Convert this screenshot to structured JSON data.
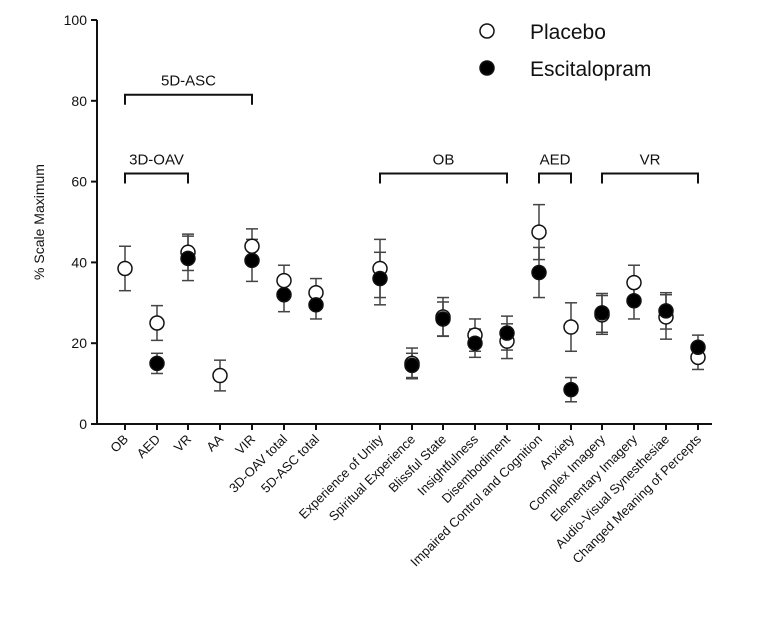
{
  "chart_data": {
    "type": "scatter",
    "title": "",
    "xlabel": "",
    "ylabel": "% Scale Maximum",
    "ylim": [
      0,
      100
    ],
    "yticks": [
      0,
      20,
      40,
      60,
      80,
      100
    ],
    "grid": false,
    "legend_position": "top-right",
    "categories": [
      "OB",
      "AED",
      "VR",
      "AA",
      "VIR",
      "3D-OAV total",
      "5D-ASC total",
      "Experience of Unity",
      "Spiritual Experience",
      "Blissful State",
      "Insightfulness",
      "Disembodiment",
      "Impaired Control and Cognition",
      "Anxiety",
      "Complex Imagery",
      "Elementary Imagery",
      "Audio-Visual Synesthesiae",
      "Changed Meaning of Percepts"
    ],
    "series": [
      {
        "name": "Placebo",
        "marker": "open-circle",
        "color": "#ffffff",
        "values": [
          38.5,
          25,
          42.5,
          12,
          44,
          35.5,
          32.5,
          38.5,
          15,
          26.5,
          22,
          20.5,
          47.5,
          24,
          27,
          35,
          26.5,
          16.5
        ],
        "errors": [
          5.5,
          4.3,
          4.5,
          3.8,
          4.3,
          3.8,
          3.5,
          7.2,
          3.8,
          4.8,
          4,
          4.3,
          6.8,
          6,
          4.8,
          4.3,
          5.5,
          3
        ]
      },
      {
        "name": "Escitalopram",
        "marker": "filled-circle",
        "color": "#000000",
        "values": [
          null,
          15,
          41,
          null,
          40.5,
          32,
          29.5,
          36,
          14.5,
          26,
          20,
          22.5,
          37.5,
          8.5,
          27.5,
          30.5,
          28,
          19
        ],
        "errors": [
          null,
          2.5,
          5.5,
          null,
          5.2,
          4.2,
          3.5,
          6.5,
          3,
          4.2,
          3.5,
          4.2,
          6.2,
          3,
          4.8,
          4.5,
          4.5,
          3
        ]
      }
    ],
    "brackets": [
      {
        "label": "5D-ASC",
        "from": "OB",
        "to": "VIR",
        "level": 81.5
      },
      {
        "label": "3D-OAV",
        "from": "OB",
        "to": "VR",
        "level": 62
      },
      {
        "label": "OB",
        "from": "Experience of Unity",
        "to": "Disembodiment",
        "level": 62
      },
      {
        "label": "AED",
        "from": "Impaired Control and Cognition",
        "to": "Anxiety",
        "level": 62
      },
      {
        "label": "VR",
        "from": "Complex Imagery",
        "to": "Changed Meaning of Percepts",
        "level": 62
      }
    ]
  }
}
